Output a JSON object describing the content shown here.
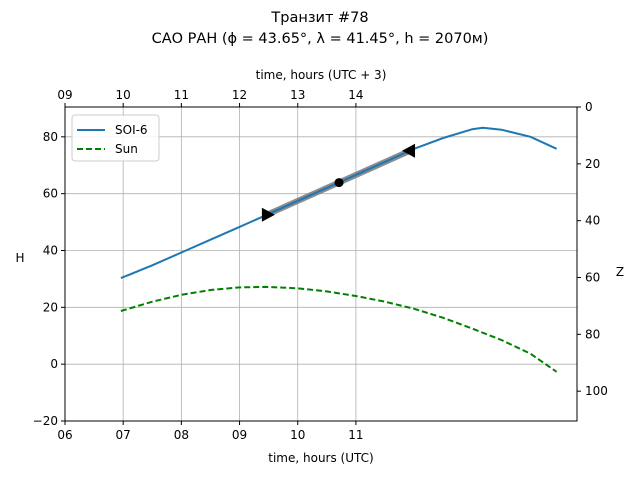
{
  "chart_data": {
    "type": "line",
    "title": "Транзит #78",
    "subtitle": "САО РАН (ϕ = 43.65°, λ = 41.45°, h = 2070м)",
    "xlabel": "time, hours (UTC)",
    "xlabel_top": "time, hours (UTC + 3)",
    "ylabel": "H",
    "ylabel_right": "Z",
    "xlim": [
      6,
      14.8
    ],
    "ylim": [
      -20,
      90.5
    ],
    "ylim_right": [
      110.5,
      0
    ],
    "xticks": [
      6,
      7,
      8,
      9,
      10,
      11
    ],
    "xtick_labels": [
      "06",
      "07",
      "08",
      "09",
      "10",
      "11"
    ],
    "xticks_top": [
      6,
      7,
      8,
      9,
      10,
      11
    ],
    "xtick_labels_top": [
      "09",
      "10",
      "11",
      "12",
      "13",
      "14"
    ],
    "yticks": [
      -20,
      0,
      20,
      40,
      60,
      80
    ],
    "yticks_right": [
      0,
      20,
      40,
      60,
      80,
      100
    ],
    "grid": true,
    "legend_position": "top-left",
    "series": [
      {
        "name": "SOI-6",
        "style": "solid",
        "color": "#1f77b4",
        "x": [
          6.96,
          7.5,
          8,
          8.5,
          9,
          9.5,
          10,
          10.5,
          11,
          11.5,
          12,
          12.5,
          13,
          13.18,
          13.5,
          14,
          14.45
        ],
        "y": [
          30.3,
          34.8,
          39.3,
          43.8,
          48.3,
          52.8,
          57.4,
          62,
          66.6,
          71.2,
          75.8,
          79.6,
          82.7,
          83.2,
          82.5,
          80.0,
          75.8
        ]
      },
      {
        "name": "Sun",
        "style": "dashed",
        "color": "#008000",
        "x": [
          6.96,
          7.5,
          8,
          8.5,
          9,
          9.44,
          10,
          10.5,
          11,
          11.5,
          12,
          12.5,
          13,
          13.5,
          14,
          14.45
        ],
        "y": [
          18.7,
          22,
          24.4,
          26.1,
          27,
          27.2,
          26.7,
          25.6,
          24,
          22,
          19.5,
          16.3,
          12.5,
          8.5,
          3.7,
          -2.7
        ]
      }
    ],
    "transit": {
      "color": "#808080",
      "start": [
        9.47,
        52.6
      ],
      "mid": [
        10.71,
        63.9
      ],
      "end": [
        11.93,
        75.1
      ]
    }
  }
}
